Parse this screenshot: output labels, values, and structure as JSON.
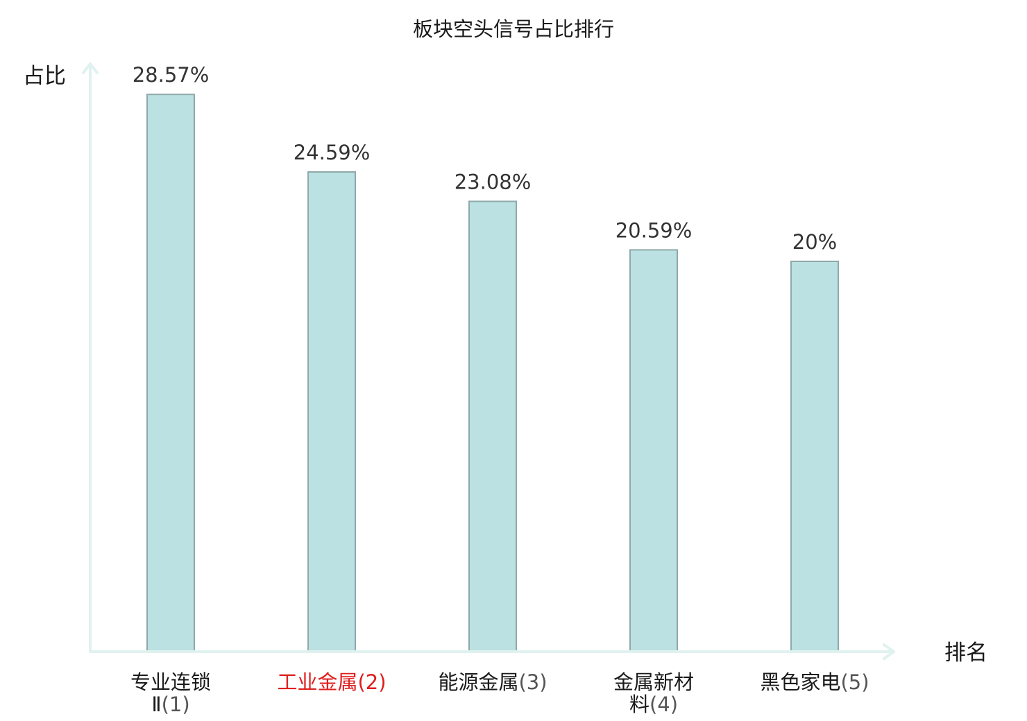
{
  "chart_data": {
    "type": "bar",
    "title": "板块空头信号占比排行",
    "ylabel": "占比",
    "xlabel": "排名",
    "categories": [
      {
        "lines": [
          "专业连锁",
          "Ⅱ(1)"
        ],
        "highlight": false
      },
      {
        "lines": [
          "工业金属(2)"
        ],
        "highlight": true
      },
      {
        "lines": [
          "能源金属(3)"
        ],
        "highlight": false
      },
      {
        "lines": [
          "金属新材",
          "料(4)"
        ],
        "highlight": false
      },
      {
        "lines": [
          "黑色家电(5)"
        ],
        "highlight": false
      }
    ],
    "values": [
      28.57,
      24.59,
      23.08,
      20.59,
      20
    ],
    "value_labels": [
      "28.57%",
      "24.59%",
      "23.08%",
      "20.59%",
      "20%"
    ],
    "ylim": [
      0,
      30
    ],
    "grid": false,
    "colors": {
      "bar_fill": "#bce1e2",
      "bar_stroke": "#8ea9a9",
      "axis": "#e0f2ef",
      "highlight_text": "#e01e1e",
      "category_text": "#1a1a1a",
      "paren_text": "#555555"
    }
  }
}
